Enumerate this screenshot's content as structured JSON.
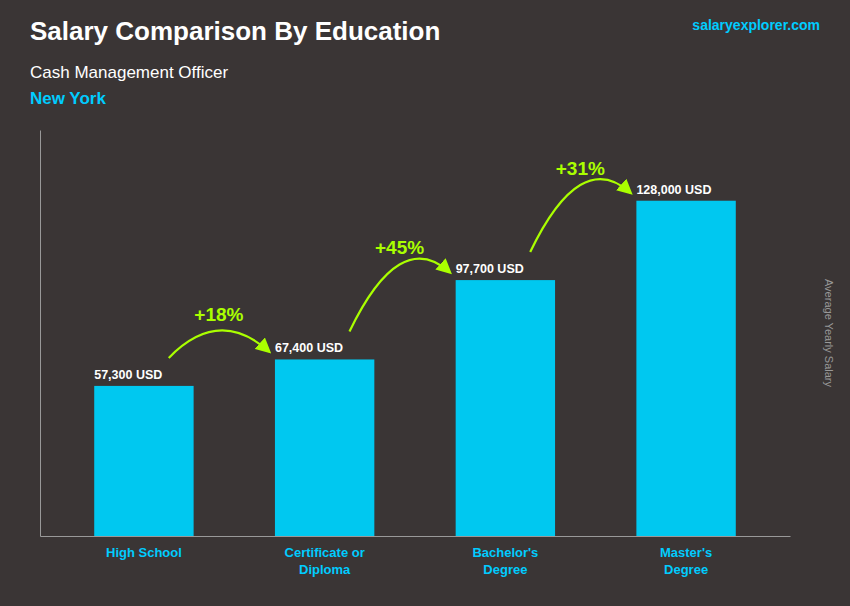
{
  "chart_data": {
    "type": "bar",
    "title": "Salary Comparison By Education",
    "subtitle": "Cash Management Officer",
    "location": "New York",
    "brand": "salaryexplorer.com",
    "ylabel": "Average Yearly Salary",
    "categories": [
      "High School",
      "Certificate or\nDiploma",
      "Bachelor's\nDegree",
      "Master's\nDegree"
    ],
    "values": [
      57300,
      67400,
      97700,
      128000
    ],
    "value_labels": [
      "57,300 USD",
      "67,400 USD",
      "97,700 USD",
      "128,000 USD"
    ],
    "data_labels": true,
    "annotations": [
      "+18%",
      "+45%",
      "+31%"
    ],
    "color": "#00c8f0",
    "ylim": [
      0,
      155000
    ],
    "grid": false,
    "tick_labels": "x"
  }
}
